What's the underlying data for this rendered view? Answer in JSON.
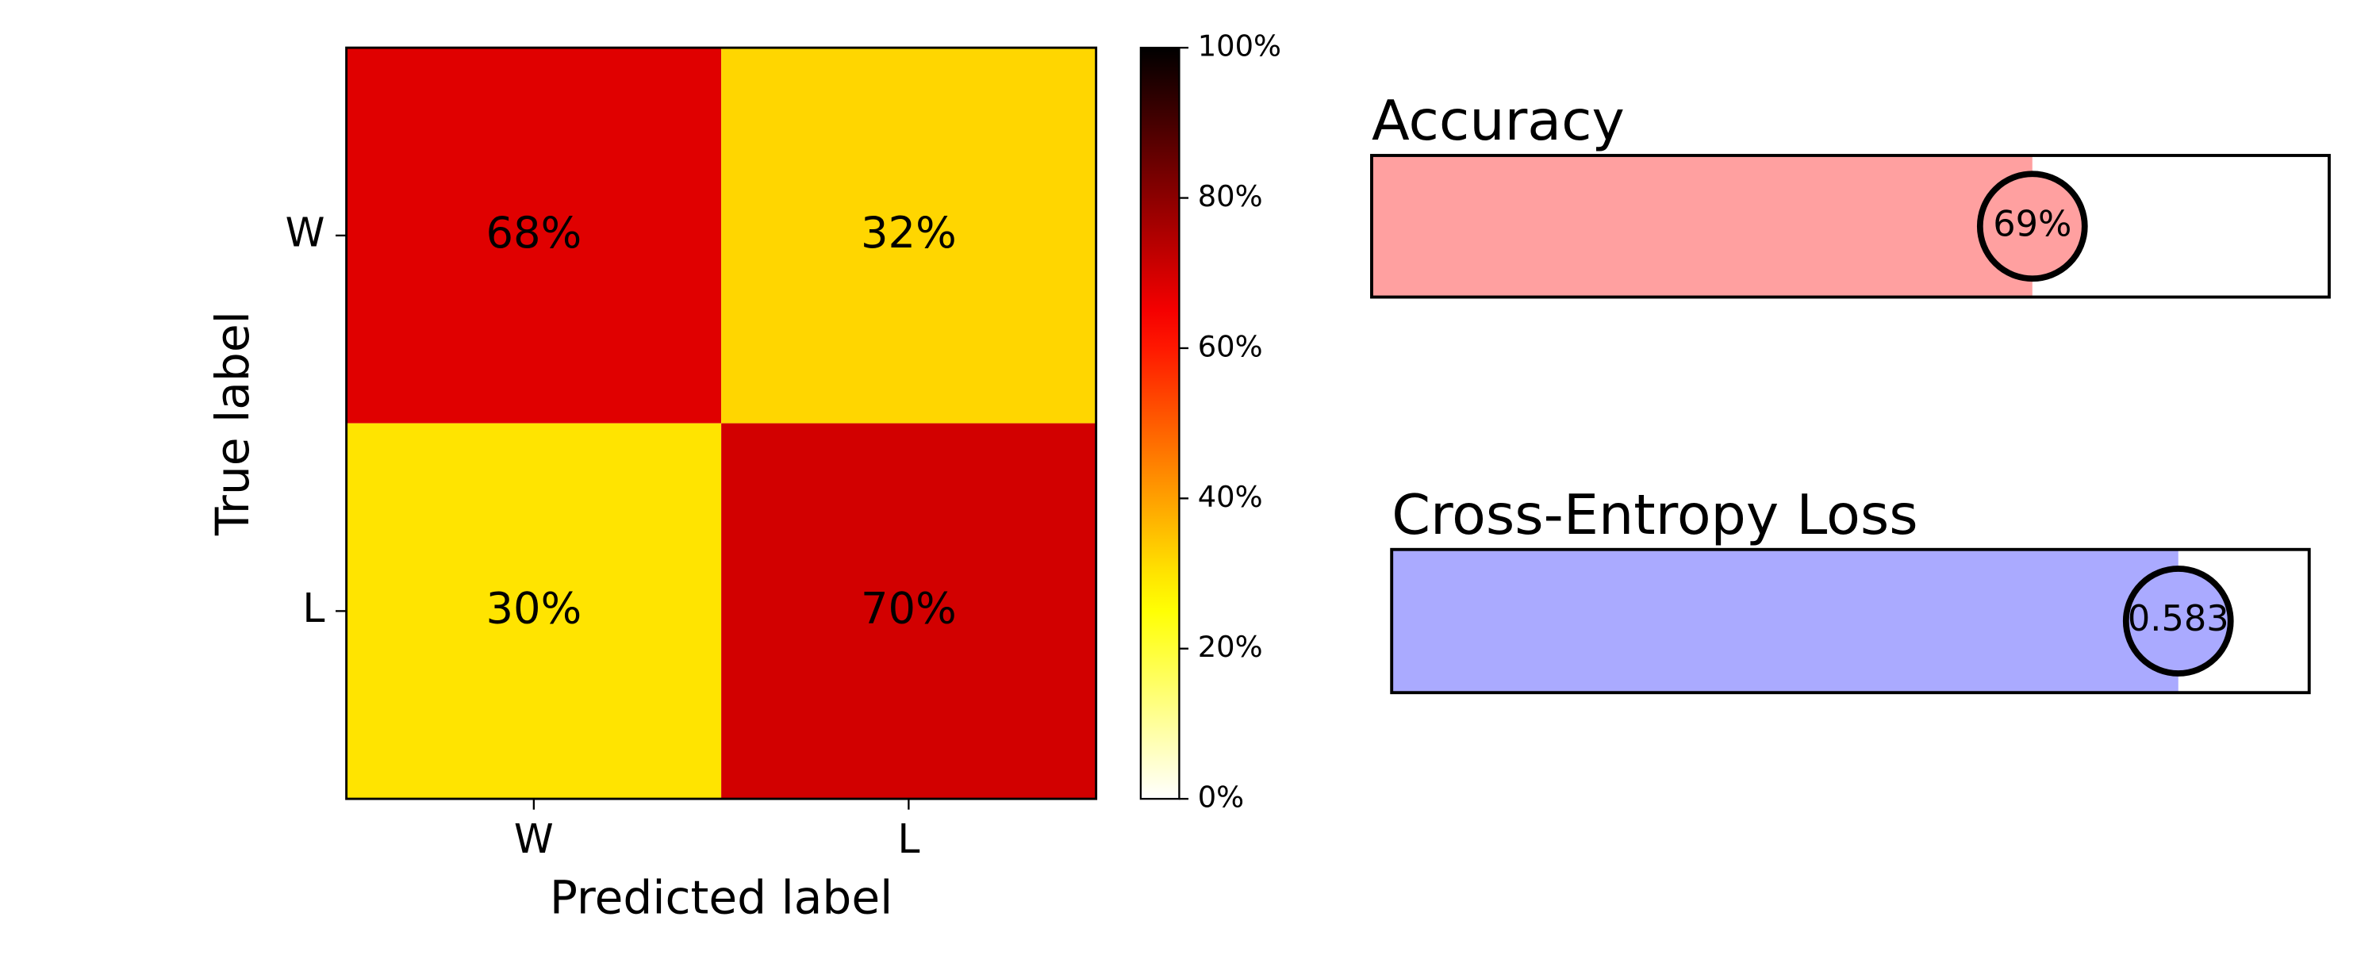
{
  "chart_data": [
    {
      "type": "heatmap",
      "xlabel": "Predicted label",
      "ylabel": "True label",
      "x_categories": [
        "W",
        "L"
      ],
      "y_categories": [
        "W",
        "L"
      ],
      "values": [
        [
          68,
          32
        ],
        [
          30,
          70
        ]
      ],
      "value_labels": [
        [
          "68%",
          "32%"
        ],
        [
          "30%",
          "70%"
        ]
      ],
      "colormap": "hot_r",
      "colorbar_lim": [
        0,
        100
      ],
      "colorbar_ticks": [
        {
          "value": 0,
          "label": "0%"
        },
        {
          "value": 20,
          "label": "20%"
        },
        {
          "value": 40,
          "label": "40%"
        },
        {
          "value": 60,
          "label": "60%"
        },
        {
          "value": 80,
          "label": "80%"
        },
        {
          "value": 100,
          "label": "100%"
        }
      ]
    },
    {
      "type": "progress",
      "title": "Accuracy",
      "value": 69,
      "value_label": "69%",
      "xlim": [
        0,
        100
      ],
      "color": "#ffa0a0"
    },
    {
      "type": "progress",
      "title": "Cross-Entropy Loss",
      "value": 0.583,
      "value_label": "0.583",
      "xlim": [
        0,
        0.68
      ],
      "color": "#aaaaff"
    }
  ]
}
